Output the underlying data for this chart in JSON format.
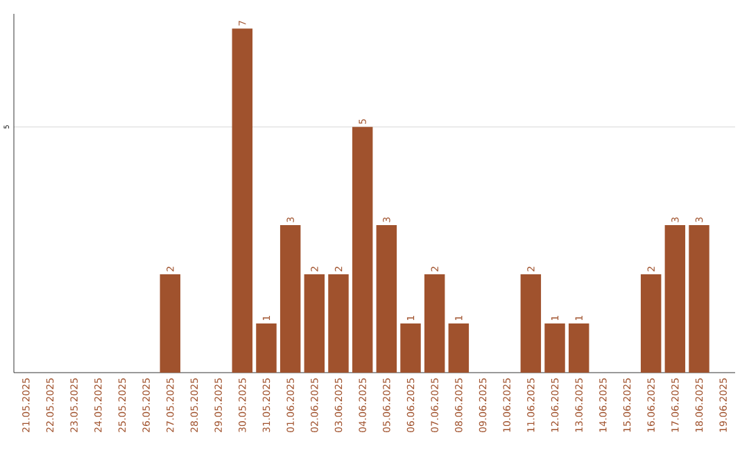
{
  "chart_data": {
    "type": "bar",
    "categories": [
      "21.05.2025",
      "22.05.2025",
      "23.05.2025",
      "24.05.2025",
      "25.05.2025",
      "26.05.2025",
      "27.05.2025",
      "28.05.2025",
      "29.05.2025",
      "30.05.2025",
      "31.05.2025",
      "01.06.2025",
      "02.06.2025",
      "03.06.2025",
      "04.06.2025",
      "05.06.2025",
      "06.06.2025",
      "07.06.2025",
      "08.06.2025",
      "09.06.2025",
      "10.06.2025",
      "11.06.2025",
      "12.06.2025",
      "13.06.2025",
      "14.06.2025",
      "15.06.2025",
      "16.06.2025",
      "17.06.2025",
      "18.06.2025",
      "19.06.2025"
    ],
    "values": [
      0,
      0,
      0,
      0,
      0,
      0,
      2,
      0,
      0,
      7,
      1,
      3,
      2,
      2,
      5,
      3,
      1,
      2,
      1,
      0,
      0,
      2,
      1,
      1,
      0,
      0,
      2,
      3,
      3,
      0
    ],
    "value_labels": [
      null,
      null,
      null,
      null,
      null,
      null,
      "2",
      null,
      null,
      "7",
      "1",
      "3",
      "2",
      "2",
      "5",
      "3",
      "1",
      "2",
      "1",
      null,
      null,
      "2",
      "1",
      "1",
      null,
      null,
      "2",
      "3",
      "3",
      null
    ],
    "color": "#a0522d",
    "ylim": [
      0,
      7.3
    ],
    "yticks": [
      5
    ],
    "grid": "y"
  }
}
